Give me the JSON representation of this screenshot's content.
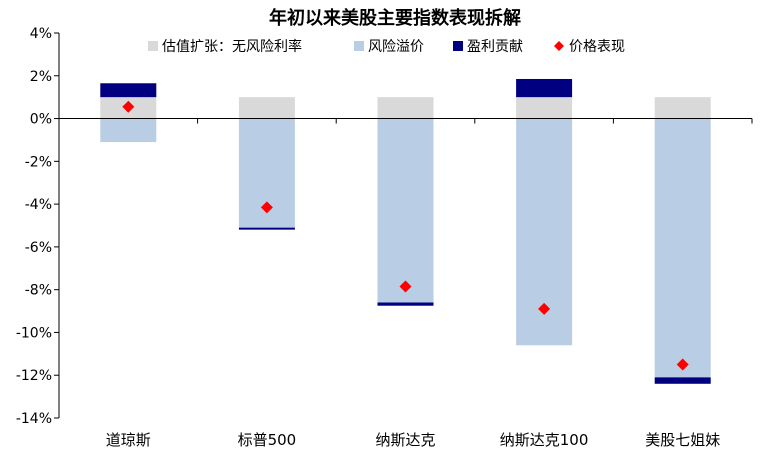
{
  "chart_data": {
    "type": "bar",
    "title": "年初以来美股主要指数表现拆解",
    "categories": [
      "道琼斯",
      "标普500",
      "纳斯达克",
      "纳斯达克100",
      "美股七姐妹"
    ],
    "ylim": [
      -14,
      4
    ],
    "yticks": [
      4,
      2,
      0,
      -2,
      -4,
      -6,
      -8,
      -10,
      -12,
      -14
    ],
    "ytick_labels": [
      "4%",
      "2%",
      "0%",
      "-2%",
      "-4%",
      "-6%",
      "-8%",
      "-10%",
      "-12%",
      "-14%"
    ],
    "grid": false,
    "legend_position": "top",
    "series": [
      {
        "name": "估值扩张：无风险利率",
        "kind": "bar",
        "color": "#d9d9d9",
        "values": [
          1.0,
          1.0,
          1.0,
          1.0,
          1.0
        ]
      },
      {
        "name": "风险溢价",
        "kind": "bar",
        "color": "#b9cde5",
        "values": [
          -1.1,
          -5.1,
          -8.6,
          -10.6,
          -12.1
        ]
      },
      {
        "name": "盈利贡献",
        "kind": "bar",
        "color": "#000080",
        "values": [
          0.65,
          -0.05,
          -0.15,
          0.85,
          -0.3
        ]
      },
      {
        "name": "价格表现",
        "kind": "marker",
        "color": "#ff0000",
        "values": [
          0.55,
          -4.15,
          -7.85,
          -8.9,
          -11.5
        ]
      }
    ]
  }
}
